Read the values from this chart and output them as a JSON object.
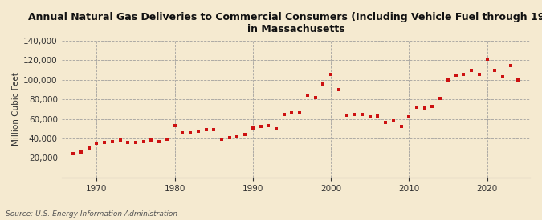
{
  "title": "Annual Natural Gas Deliveries to Commercial Consumers (Including Vehicle Fuel through 1996)\nin Massachusetts",
  "ylabel": "Million Cubic Feet",
  "source": "Source: U.S. Energy Information Administration",
  "background_color": "#f5ead0",
  "plot_background_color": "#f5ead0",
  "marker_color": "#cc1111",
  "years": [
    1967,
    1968,
    1969,
    1970,
    1971,
    1972,
    1973,
    1974,
    1975,
    1976,
    1977,
    1978,
    1979,
    1980,
    1981,
    1982,
    1983,
    1984,
    1985,
    1986,
    1987,
    1988,
    1989,
    1990,
    1991,
    1992,
    1993,
    1994,
    1995,
    1996,
    1997,
    1998,
    1999,
    2000,
    2001,
    2002,
    2003,
    2004,
    2005,
    2006,
    2007,
    2008,
    2009,
    2010,
    2011,
    2012,
    2013,
    2014,
    2015,
    2016,
    2017,
    2018,
    2019,
    2020,
    2021,
    2022,
    2023,
    2024
  ],
  "values": [
    24000,
    26000,
    30000,
    35000,
    36000,
    37000,
    38000,
    36000,
    36000,
    37000,
    38000,
    37000,
    39000,
    53000,
    46000,
    46000,
    47000,
    49000,
    49000,
    39000,
    41000,
    42000,
    44000,
    51000,
    52000,
    53000,
    50000,
    65000,
    66000,
    66000,
    84000,
    82000,
    96000,
    106000,
    90000,
    64000,
    65000,
    65000,
    62000,
    63000,
    56000,
    58000,
    52000,
    62000,
    72000,
    71000,
    73000,
    81000,
    100000,
    105000,
    106000,
    110000,
    106000,
    121000,
    110000,
    103000,
    115000,
    100000
  ],
  "ylim": [
    0,
    140000
  ],
  "yticks": [
    20000,
    40000,
    60000,
    80000,
    100000,
    120000,
    140000
  ],
  "xlim": [
    1965.5,
    2025.5
  ],
  "xticks": [
    1970,
    1980,
    1990,
    2000,
    2010,
    2020
  ]
}
